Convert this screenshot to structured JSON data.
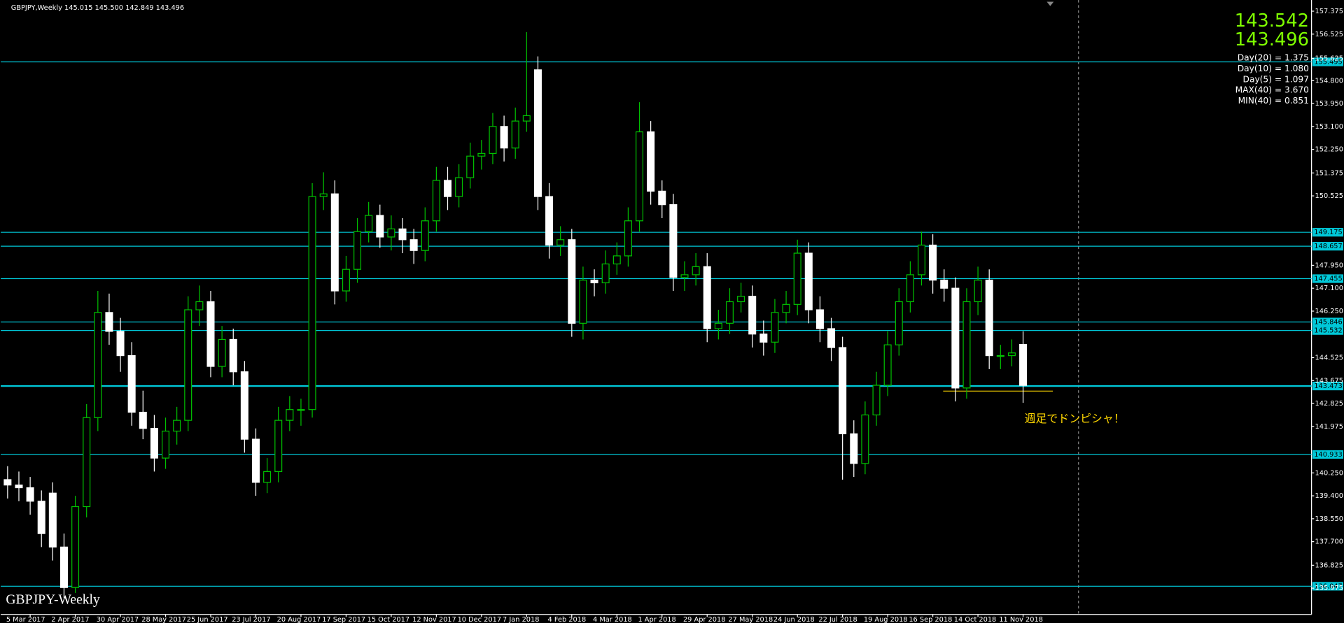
{
  "chart_data": {
    "type": "candlestick",
    "header": "GBPJPY,Weekly  145.015 145.500 142.849 143.496",
    "watermark": "GBPJPY-Weekly",
    "annotation": "週足でドンピシャ！",
    "prices": [
      143.542,
      143.496
    ],
    "info": [
      "Day(20) = 1.375",
      "Day(10) = 1.080",
      "Day(5) = 1.097",
      "MAX(40) = 3.670",
      "MIN(40) = 0.851"
    ],
    "colors": {
      "up": "#00c000",
      "down": "#ffffff",
      "level": "#00c8d8",
      "price": "#7fff00",
      "annotation": "#ffd700"
    },
    "categories": [
      null,
      null,
      "5 Mar 2017",
      null,
      null,
      null,
      "2 Apr 2017",
      null,
      null,
      null,
      "30 Apr 2017",
      null,
      null,
      null,
      "28 May 2017",
      null,
      null,
      null,
      "25 Jun 2017",
      null,
      null,
      null,
      "23 Jul 2017",
      null,
      null,
      null,
      "20 Aug 2017",
      null,
      null,
      null,
      "17 Sep 2017",
      null,
      null,
      null,
      "15 Oct 2017",
      null,
      null,
      null,
      "12 Nov 2017",
      null,
      null,
      null,
      "10 Dec 2017",
      null,
      null,
      null,
      "7 Jan 2018",
      null,
      null,
      null,
      "4 Feb 2018",
      null,
      null,
      null,
      "4 Mar 2018",
      null,
      null,
      null,
      "1 Apr 2018",
      null,
      null,
      null,
      "29 Apr 2018",
      null,
      null,
      null,
      "27 May 2018",
      null,
      null,
      null,
      "24 Jun 2018",
      null,
      null,
      null,
      "22 Jul 2018",
      null,
      null,
      null,
      "19 Aug 2018",
      null,
      null,
      null,
      "16 Sep 2018",
      null,
      null,
      null,
      "14 Oct 2018",
      null,
      null,
      null,
      "11 Nov 2018",
      null,
      null
    ],
    "ohlc": [
      [
        140.0,
        140.5,
        139.3,
        139.8
      ],
      [
        139.8,
        140.3,
        139.2,
        139.7
      ],
      [
        139.7,
        140.1,
        138.7,
        139.2
      ],
      [
        139.2,
        139.6,
        137.5,
        138.0
      ],
      [
        139.5,
        139.9,
        137.0,
        137.5
      ],
      [
        137.5,
        138.0,
        135.6,
        136.0
      ],
      [
        136.0,
        139.4,
        135.8,
        139.0
      ],
      [
        139.0,
        142.8,
        138.6,
        142.3
      ],
      [
        142.3,
        147.0,
        141.8,
        146.2
      ],
      [
        146.2,
        146.9,
        145.0,
        145.5
      ],
      [
        145.5,
        146.0,
        144.0,
        144.6
      ],
      [
        144.6,
        145.1,
        142.0,
        142.5
      ],
      [
        142.5,
        143.3,
        141.5,
        141.9
      ],
      [
        141.9,
        142.4,
        140.3,
        140.8
      ],
      [
        140.8,
        142.3,
        140.4,
        141.8
      ],
      [
        141.8,
        142.7,
        141.3,
        142.2
      ],
      [
        142.2,
        146.8,
        141.8,
        146.3
      ],
      [
        146.3,
        147.2,
        145.7,
        146.6
      ],
      [
        146.6,
        147.0,
        143.8,
        144.2
      ],
      [
        144.2,
        145.7,
        143.8,
        145.2
      ],
      [
        145.2,
        145.6,
        143.5,
        144.0
      ],
      [
        144.0,
        144.4,
        141.0,
        141.5
      ],
      [
        141.5,
        141.9,
        139.4,
        139.9
      ],
      [
        139.9,
        140.8,
        139.5,
        140.3
      ],
      [
        140.3,
        142.7,
        139.9,
        142.2
      ],
      [
        142.2,
        143.1,
        141.8,
        142.6
      ],
      [
        142.6,
        143.0,
        142.0,
        142.6
      ],
      [
        142.6,
        151.0,
        142.3,
        150.5
      ],
      [
        150.5,
        151.4,
        150.0,
        150.6
      ],
      [
        150.6,
        151.1,
        146.5,
        147.0
      ],
      [
        147.0,
        148.3,
        146.6,
        147.8
      ],
      [
        147.8,
        149.7,
        147.3,
        149.2
      ],
      [
        149.2,
        150.3,
        148.8,
        149.8
      ],
      [
        149.8,
        150.2,
        148.6,
        149.0
      ],
      [
        149.0,
        149.8,
        148.5,
        149.3
      ],
      [
        149.3,
        149.7,
        148.4,
        148.9
      ],
      [
        148.9,
        149.3,
        148.0,
        148.5
      ],
      [
        148.5,
        150.1,
        148.1,
        149.6
      ],
      [
        149.6,
        151.6,
        149.2,
        151.1
      ],
      [
        151.1,
        151.6,
        150.0,
        150.5
      ],
      [
        150.5,
        151.7,
        150.1,
        151.2
      ],
      [
        151.2,
        152.5,
        150.8,
        152.0
      ],
      [
        152.0,
        152.6,
        151.5,
        152.1
      ],
      [
        152.1,
        153.6,
        151.7,
        153.1
      ],
      [
        153.1,
        153.5,
        151.8,
        152.3
      ],
      [
        152.3,
        153.8,
        151.9,
        153.3
      ],
      [
        153.3,
        156.6,
        152.9,
        153.5
      ],
      [
        155.2,
        155.7,
        150.0,
        150.5
      ],
      [
        150.5,
        151.0,
        148.2,
        148.7
      ],
      [
        148.7,
        149.4,
        148.3,
        148.9
      ],
      [
        148.9,
        149.3,
        145.3,
        145.8
      ],
      [
        145.8,
        147.9,
        145.2,
        147.4
      ],
      [
        147.4,
        147.8,
        146.8,
        147.3
      ],
      [
        147.3,
        148.5,
        146.9,
        148.0
      ],
      [
        148.0,
        148.8,
        147.6,
        148.3
      ],
      [
        148.3,
        150.1,
        147.9,
        149.6
      ],
      [
        149.6,
        154.0,
        149.2,
        152.9
      ],
      [
        152.9,
        153.3,
        150.2,
        150.7
      ],
      [
        150.7,
        151.1,
        149.7,
        150.2
      ],
      [
        150.2,
        150.6,
        147.0,
        147.5
      ],
      [
        147.5,
        148.1,
        147.0,
        147.6
      ],
      [
        147.6,
        148.4,
        147.2,
        147.9
      ],
      [
        147.9,
        148.4,
        145.1,
        145.6
      ],
      [
        145.6,
        146.3,
        145.2,
        145.8
      ],
      [
        145.8,
        147.1,
        145.4,
        146.6
      ],
      [
        146.6,
        147.3,
        146.2,
        146.8
      ],
      [
        146.8,
        147.2,
        144.9,
        145.4
      ],
      [
        145.4,
        145.9,
        144.6,
        145.1
      ],
      [
        145.1,
        146.7,
        144.7,
        146.2
      ],
      [
        146.2,
        147.0,
        145.8,
        146.5
      ],
      [
        146.5,
        148.9,
        146.1,
        148.4
      ],
      [
        148.4,
        148.8,
        145.8,
        146.3
      ],
      [
        146.3,
        146.8,
        145.1,
        145.6
      ],
      [
        145.6,
        146.0,
        144.4,
        144.9
      ],
      [
        144.9,
        145.3,
        140.0,
        141.7
      ],
      [
        141.7,
        142.2,
        140.1,
        140.6
      ],
      [
        140.6,
        142.9,
        140.2,
        142.4
      ],
      [
        142.4,
        144.0,
        142.0,
        143.5
      ],
      [
        143.5,
        145.5,
        143.1,
        145.0
      ],
      [
        145.0,
        147.1,
        144.6,
        146.6
      ],
      [
        146.6,
        148.1,
        146.2,
        147.6
      ],
      [
        147.6,
        149.2,
        147.2,
        148.7
      ],
      [
        148.7,
        149.1,
        146.9,
        147.4
      ],
      [
        147.4,
        147.8,
        146.6,
        147.1
      ],
      [
        147.1,
        147.5,
        142.9,
        143.4
      ],
      [
        143.4,
        147.1,
        143.0,
        146.6
      ],
      [
        146.6,
        147.9,
        146.1,
        147.4
      ],
      [
        147.4,
        147.8,
        144.1,
        144.6
      ],
      [
        144.6,
        145.0,
        144.1,
        144.6
      ],
      [
        144.6,
        145.2,
        144.2,
        144.7
      ],
      [
        145.015,
        145.5,
        142.849,
        143.496
      ]
    ],
    "ylim": [
      135.0,
      157.79
    ],
    "yticks": [
      157.375,
      156.525,
      {
        "value": 155.625,
        "label": "155.625"
      },
      {
        "value": 154.8,
        "label": "154.800"
      },
      {
        "value": 153.95,
        "label": "153.950"
      },
      {
        "value": 153.1,
        "label": "153.100"
      },
      {
        "value": 152.25,
        "label": "152.250"
      },
      151.375,
      150.525,
      {
        "value": 147.95,
        "label": "147.950"
      },
      {
        "value": 147.1,
        "label": "147.100"
      },
      {
        "value": 146.25,
        "label": "146.250"
      },
      144.525,
      143.675,
      142.825,
      141.975,
      {
        "value": 140.25,
        "label": "140.250"
      },
      {
        "value": 139.4,
        "label": "139.400"
      },
      {
        "value": 138.55,
        "label": "138.550"
      },
      {
        "value": 137.7,
        "label": "137.700"
      },
      136.825,
      135.975
    ],
    "levels": [
      155.495,
      149.175,
      148.657,
      147.455,
      145.846,
      145.532,
      143.473,
      140.933,
      136.047
    ]
  }
}
